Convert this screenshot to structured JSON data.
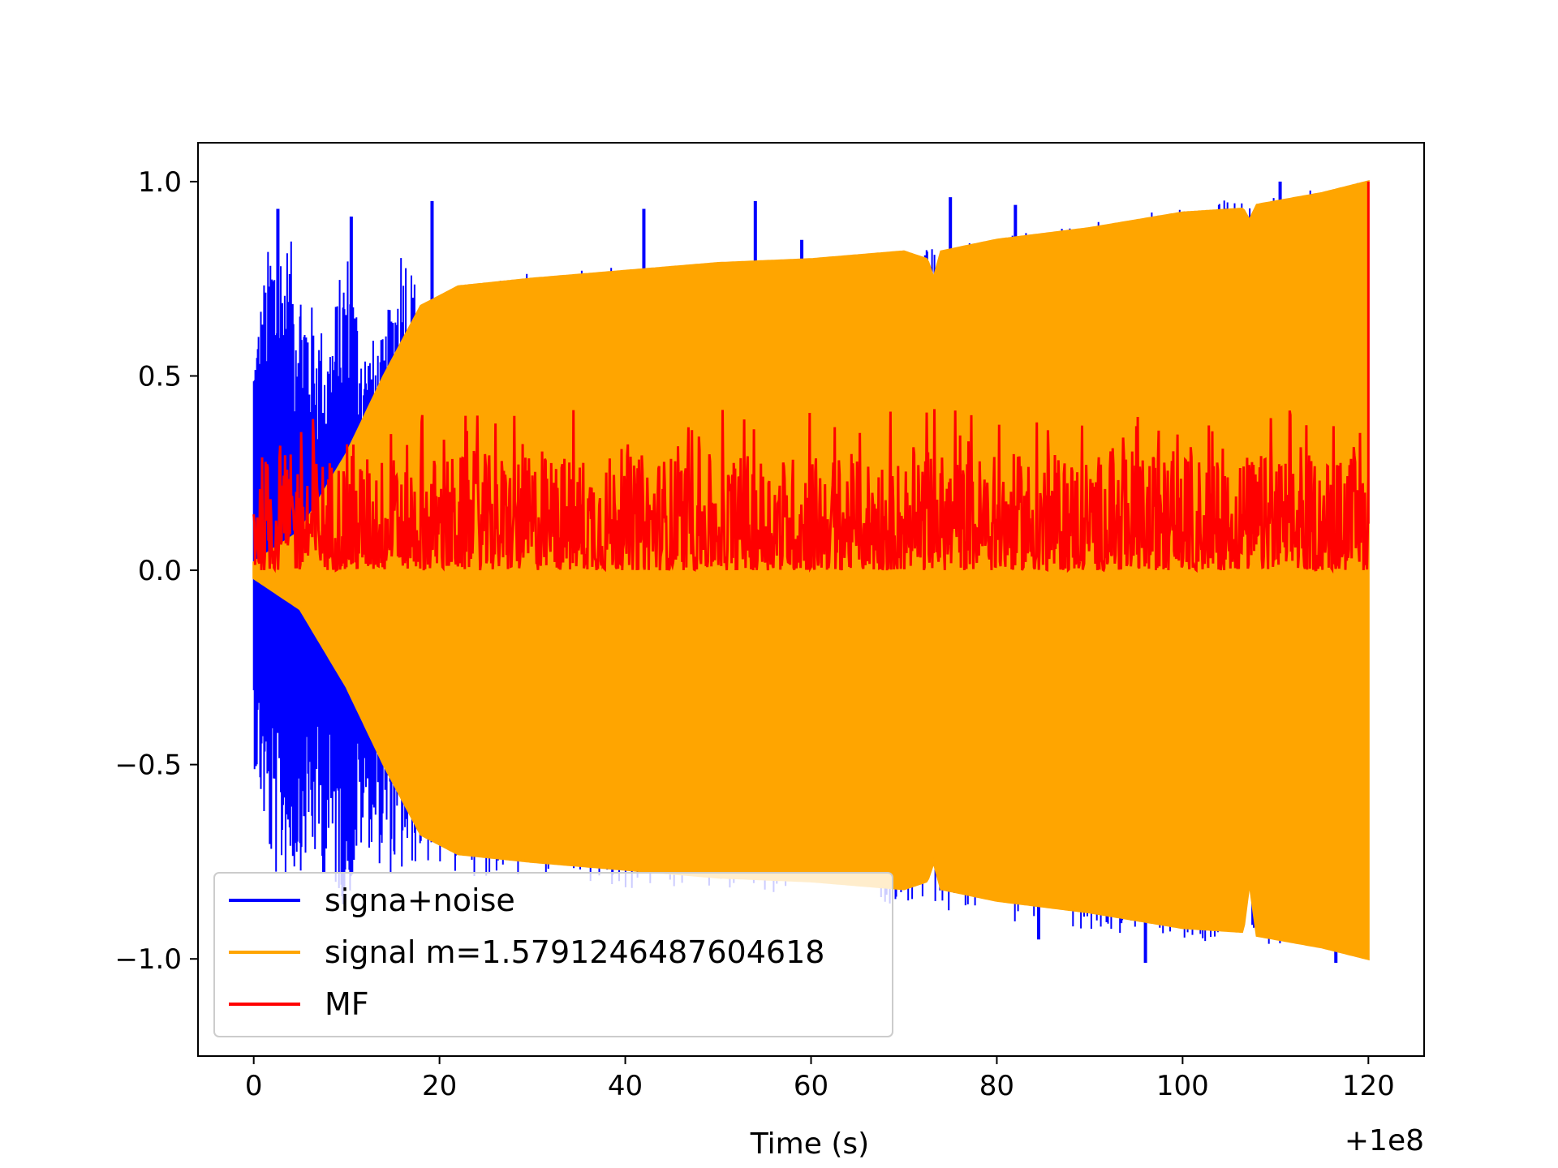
{
  "chart_data": {
    "type": "line",
    "title": "",
    "xlabel": "Time (s)",
    "ylabel": "",
    "x_offset_label": "+1e8",
    "xlim": [
      -6,
      126
    ],
    "ylim": [
      -1.25,
      1.1
    ],
    "xticks": [
      0,
      20,
      40,
      60,
      80,
      100,
      120
    ],
    "yticks": [
      -1.0,
      -0.5,
      0.0,
      0.5,
      1.0
    ],
    "xtick_labels": [
      "0",
      "20",
      "40",
      "60",
      "80",
      "100",
      "120"
    ],
    "ytick_labels": [
      "−1.0",
      "−0.5",
      "0.0",
      "0.5",
      "1.0"
    ],
    "grid": false,
    "legend_position": "lower-left",
    "series": [
      {
        "name": "signa+noise",
        "color": "#0000ff",
        "envelope_x": [
          0,
          2,
          4,
          6,
          8,
          10,
          12,
          14,
          16,
          18,
          20,
          30,
          40,
          60,
          80,
          100,
          120
        ],
        "envelope_max": [
          0.6,
          0.9,
          0.85,
          0.7,
          0.6,
          0.85,
          0.6,
          0.6,
          0.9,
          0.7,
          0.7,
          0.78,
          0.78,
          0.8,
          0.86,
          0.94,
          1.0
        ],
        "envelope_min": [
          -0.5,
          -0.8,
          -0.8,
          -0.75,
          -0.8,
          -0.88,
          -0.7,
          -0.78,
          -0.8,
          -0.75,
          -0.78,
          -0.8,
          -0.83,
          -0.83,
          -0.9,
          -0.95,
          -1.0
        ],
        "spikes_x": [
          2.6,
          10.5,
          19.2,
          42,
          54,
          59,
          75,
          82,
          84.5,
          96,
          110.5,
          116.5
        ],
        "spikes_y": [
          0.93,
          0.91,
          0.95,
          0.93,
          0.95,
          0.85,
          0.96,
          0.94,
          -0.95,
          -1.01,
          1.0,
          -1.01
        ]
      },
      {
        "name": "signal m=1.5791246487604618",
        "color": "#ffa500",
        "envelope_x": [
          0,
          5,
          10,
          14,
          18,
          22,
          26,
          30,
          40,
          50,
          60,
          70,
          72.5,
          73.2,
          74,
          80,
          90,
          100,
          106.5,
          107.2,
          108,
          115,
          120
        ],
        "envelope_max": [
          0.02,
          0.1,
          0.3,
          0.5,
          0.68,
          0.73,
          0.74,
          0.75,
          0.77,
          0.79,
          0.8,
          0.82,
          0.8,
          0.75,
          0.82,
          0.85,
          0.88,
          0.92,
          0.93,
          0.9,
          0.94,
          0.97,
          1.0
        ],
        "envelope_min": [
          -0.02,
          -0.1,
          -0.3,
          -0.5,
          -0.68,
          -0.73,
          -0.74,
          -0.75,
          -0.77,
          -0.79,
          -0.8,
          -0.82,
          -0.8,
          -0.75,
          -0.82,
          -0.85,
          -0.88,
          -0.92,
          -0.93,
          -0.8,
          -0.94,
          -0.97,
          -1.0
        ]
      },
      {
        "name": "MF",
        "color": "#ff0000",
        "baseline": 0.12,
        "band_min": 0.0,
        "band_max": 0.3,
        "peak_x": 120,
        "peak_y": 1.0
      }
    ]
  }
}
